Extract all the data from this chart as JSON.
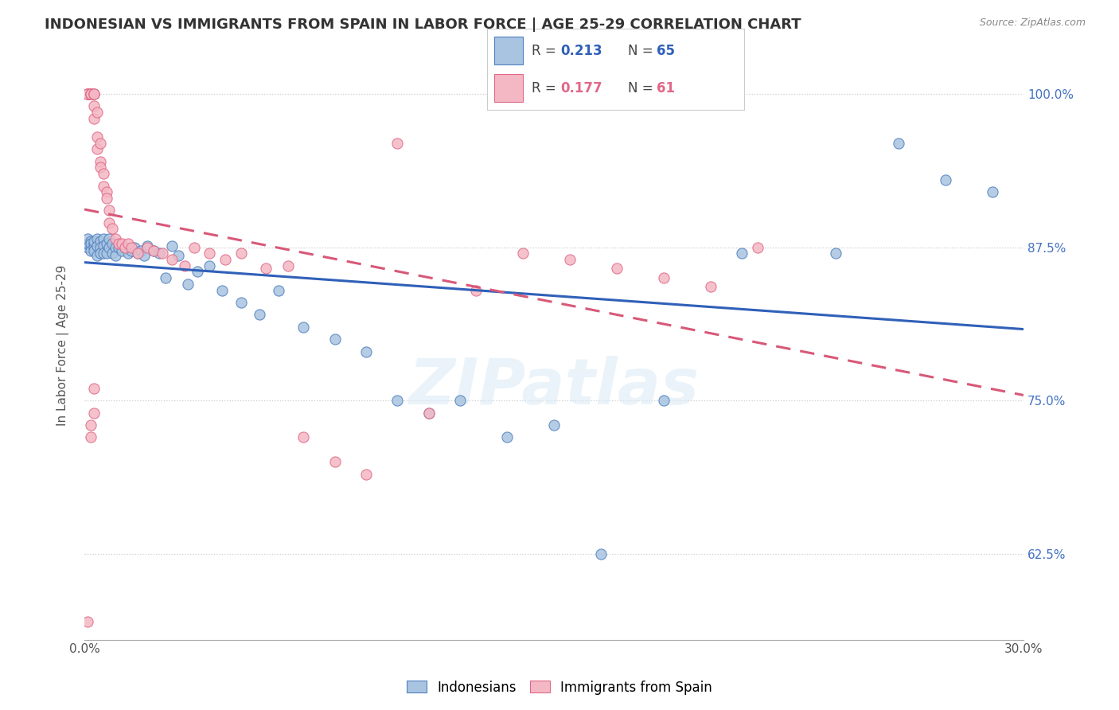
{
  "title": "INDONESIAN VS IMMIGRANTS FROM SPAIN IN LABOR FORCE | AGE 25-29 CORRELATION CHART",
  "source": "Source: ZipAtlas.com",
  "ylabel": "In Labor Force | Age 25-29",
  "x_min": 0.0,
  "x_max": 0.3,
  "y_min": 0.555,
  "y_max": 1.035,
  "x_ticks": [
    0.0,
    0.05,
    0.1,
    0.15,
    0.2,
    0.25,
    0.3
  ],
  "x_tick_labels": [
    "0.0%",
    "",
    "",
    "",
    "",
    "",
    "30.0%"
  ],
  "y_ticks": [
    0.625,
    0.75,
    0.875,
    1.0
  ],
  "y_tick_labels": [
    "62.5%",
    "75.0%",
    "87.5%",
    "100.0%"
  ],
  "blue_R": 0.213,
  "blue_N": 65,
  "pink_R": 0.177,
  "pink_N": 61,
  "blue_color": "#a8c4e0",
  "pink_color": "#f4b8c4",
  "blue_edge_color": "#5080c0",
  "pink_edge_color": "#e06888",
  "blue_line_color": "#3060b8",
  "pink_line_color": "#d85878",
  "watermark": "ZIPatlas",
  "blue_scatter_x": [
    0.001,
    0.001,
    0.001,
    0.002,
    0.002,
    0.002,
    0.002,
    0.003,
    0.003,
    0.003,
    0.003,
    0.004,
    0.004,
    0.004,
    0.005,
    0.005,
    0.005,
    0.006,
    0.006,
    0.006,
    0.007,
    0.007,
    0.008,
    0.008,
    0.009,
    0.009,
    0.01,
    0.01,
    0.011,
    0.012,
    0.013,
    0.014,
    0.015,
    0.016,
    0.017,
    0.018,
    0.019,
    0.02,
    0.022,
    0.024,
    0.026,
    0.028,
    0.03,
    0.033,
    0.036,
    0.04,
    0.044,
    0.05,
    0.056,
    0.062,
    0.07,
    0.08,
    0.09,
    0.1,
    0.11,
    0.12,
    0.135,
    0.15,
    0.165,
    0.185,
    0.21,
    0.24,
    0.26,
    0.275,
    0.29
  ],
  "blue_scatter_y": [
    0.875,
    0.878,
    0.882,
    0.88,
    0.875,
    0.878,
    0.872,
    0.878,
    0.875,
    0.88,
    0.872,
    0.882,
    0.876,
    0.868,
    0.88,
    0.875,
    0.87,
    0.882,
    0.876,
    0.87,
    0.878,
    0.87,
    0.882,
    0.875,
    0.878,
    0.87,
    0.875,
    0.868,
    0.875,
    0.872,
    0.875,
    0.87,
    0.872,
    0.875,
    0.87,
    0.872,
    0.868,
    0.876,
    0.872,
    0.87,
    0.85,
    0.876,
    0.868,
    0.845,
    0.855,
    0.86,
    0.84,
    0.83,
    0.82,
    0.84,
    0.81,
    0.8,
    0.79,
    0.75,
    0.74,
    0.75,
    0.72,
    0.73,
    0.625,
    0.75,
    0.87,
    0.87,
    0.96,
    0.93,
    0.92
  ],
  "pink_scatter_x": [
    0.001,
    0.001,
    0.001,
    0.001,
    0.002,
    0.002,
    0.002,
    0.002,
    0.003,
    0.003,
    0.003,
    0.003,
    0.003,
    0.004,
    0.004,
    0.004,
    0.005,
    0.005,
    0.005,
    0.006,
    0.006,
    0.007,
    0.007,
    0.008,
    0.008,
    0.009,
    0.01,
    0.011,
    0.012,
    0.013,
    0.014,
    0.015,
    0.017,
    0.02,
    0.022,
    0.025,
    0.028,
    0.032,
    0.035,
    0.04,
    0.045,
    0.05,
    0.058,
    0.065,
    0.07,
    0.08,
    0.09,
    0.1,
    0.11,
    0.125,
    0.14,
    0.155,
    0.17,
    0.185,
    0.2,
    0.215,
    0.001,
    0.002,
    0.002,
    0.003,
    0.003
  ],
  "pink_scatter_y": [
    1.0,
    1.0,
    1.0,
    1.0,
    1.0,
    1.0,
    1.0,
    1.0,
    1.0,
    1.0,
    1.0,
    0.99,
    0.98,
    0.985,
    0.965,
    0.955,
    0.96,
    0.945,
    0.94,
    0.935,
    0.925,
    0.92,
    0.915,
    0.905,
    0.895,
    0.89,
    0.882,
    0.878,
    0.878,
    0.875,
    0.878,
    0.875,
    0.87,
    0.875,
    0.872,
    0.87,
    0.865,
    0.86,
    0.875,
    0.87,
    0.865,
    0.87,
    0.858,
    0.86,
    0.72,
    0.7,
    0.69,
    0.96,
    0.74,
    0.84,
    0.87,
    0.865,
    0.858,
    0.85,
    0.843,
    0.875,
    0.57,
    0.72,
    0.73,
    0.74,
    0.76
  ]
}
